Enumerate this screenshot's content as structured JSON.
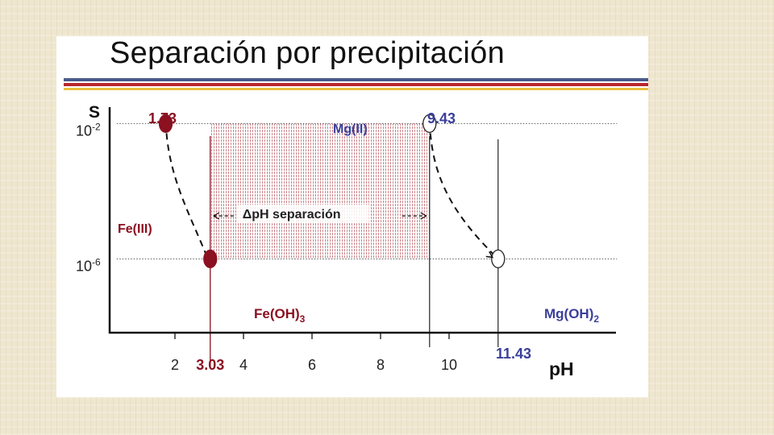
{
  "slide": {
    "title": "Separación por precipitación"
  },
  "colors": {
    "red": "#8b1020",
    "blue": "#3a3f9a",
    "axis": "#111111",
    "title_rule_blue": "#4a5a8a",
    "title_rule_red": "#b8282e",
    "title_rule_yellow": "#e8c040"
  },
  "chart_data": {
    "type": "line",
    "ylabel": "S",
    "xlabel": "pH",
    "x_ticks": [
      "2",
      "4",
      "6",
      "8",
      "10"
    ],
    "x_tick_values": [
      2,
      4,
      6,
      8,
      10
    ],
    "y_ticks": [
      {
        "label": "10",
        "sup": "-2",
        "value": -2
      },
      {
        "label": "10",
        "sup": "-6",
        "value": -6
      }
    ],
    "xlim": [
      0,
      13
    ],
    "ylim_log10": [
      -7.3,
      0.5
    ],
    "y_scale": "log",
    "series": [
      {
        "name": "Fe(III)",
        "start": {
          "x": 1.73,
          "y": -2,
          "label": "1.73"
        },
        "end": {
          "x": 3.03,
          "y": -6,
          "label": "3.03"
        },
        "end_label": "Fe(OH)",
        "end_label_sub": "3",
        "marker_fill": "filled"
      },
      {
        "name": "Mg(II)",
        "start": {
          "x": 9.43,
          "y": -2,
          "label": "9.43"
        },
        "end": {
          "x": 11.43,
          "y": -6,
          "label": "11.43"
        },
        "end_label": "Mg(OH)",
        "end_label_sub": "2",
        "marker_fill": "open"
      }
    ],
    "separation_band": {
      "x_from": 3.03,
      "x_to": 9.43,
      "y_from": -6,
      "y_to": -2
    },
    "separation_label": "ΔpH separación"
  }
}
